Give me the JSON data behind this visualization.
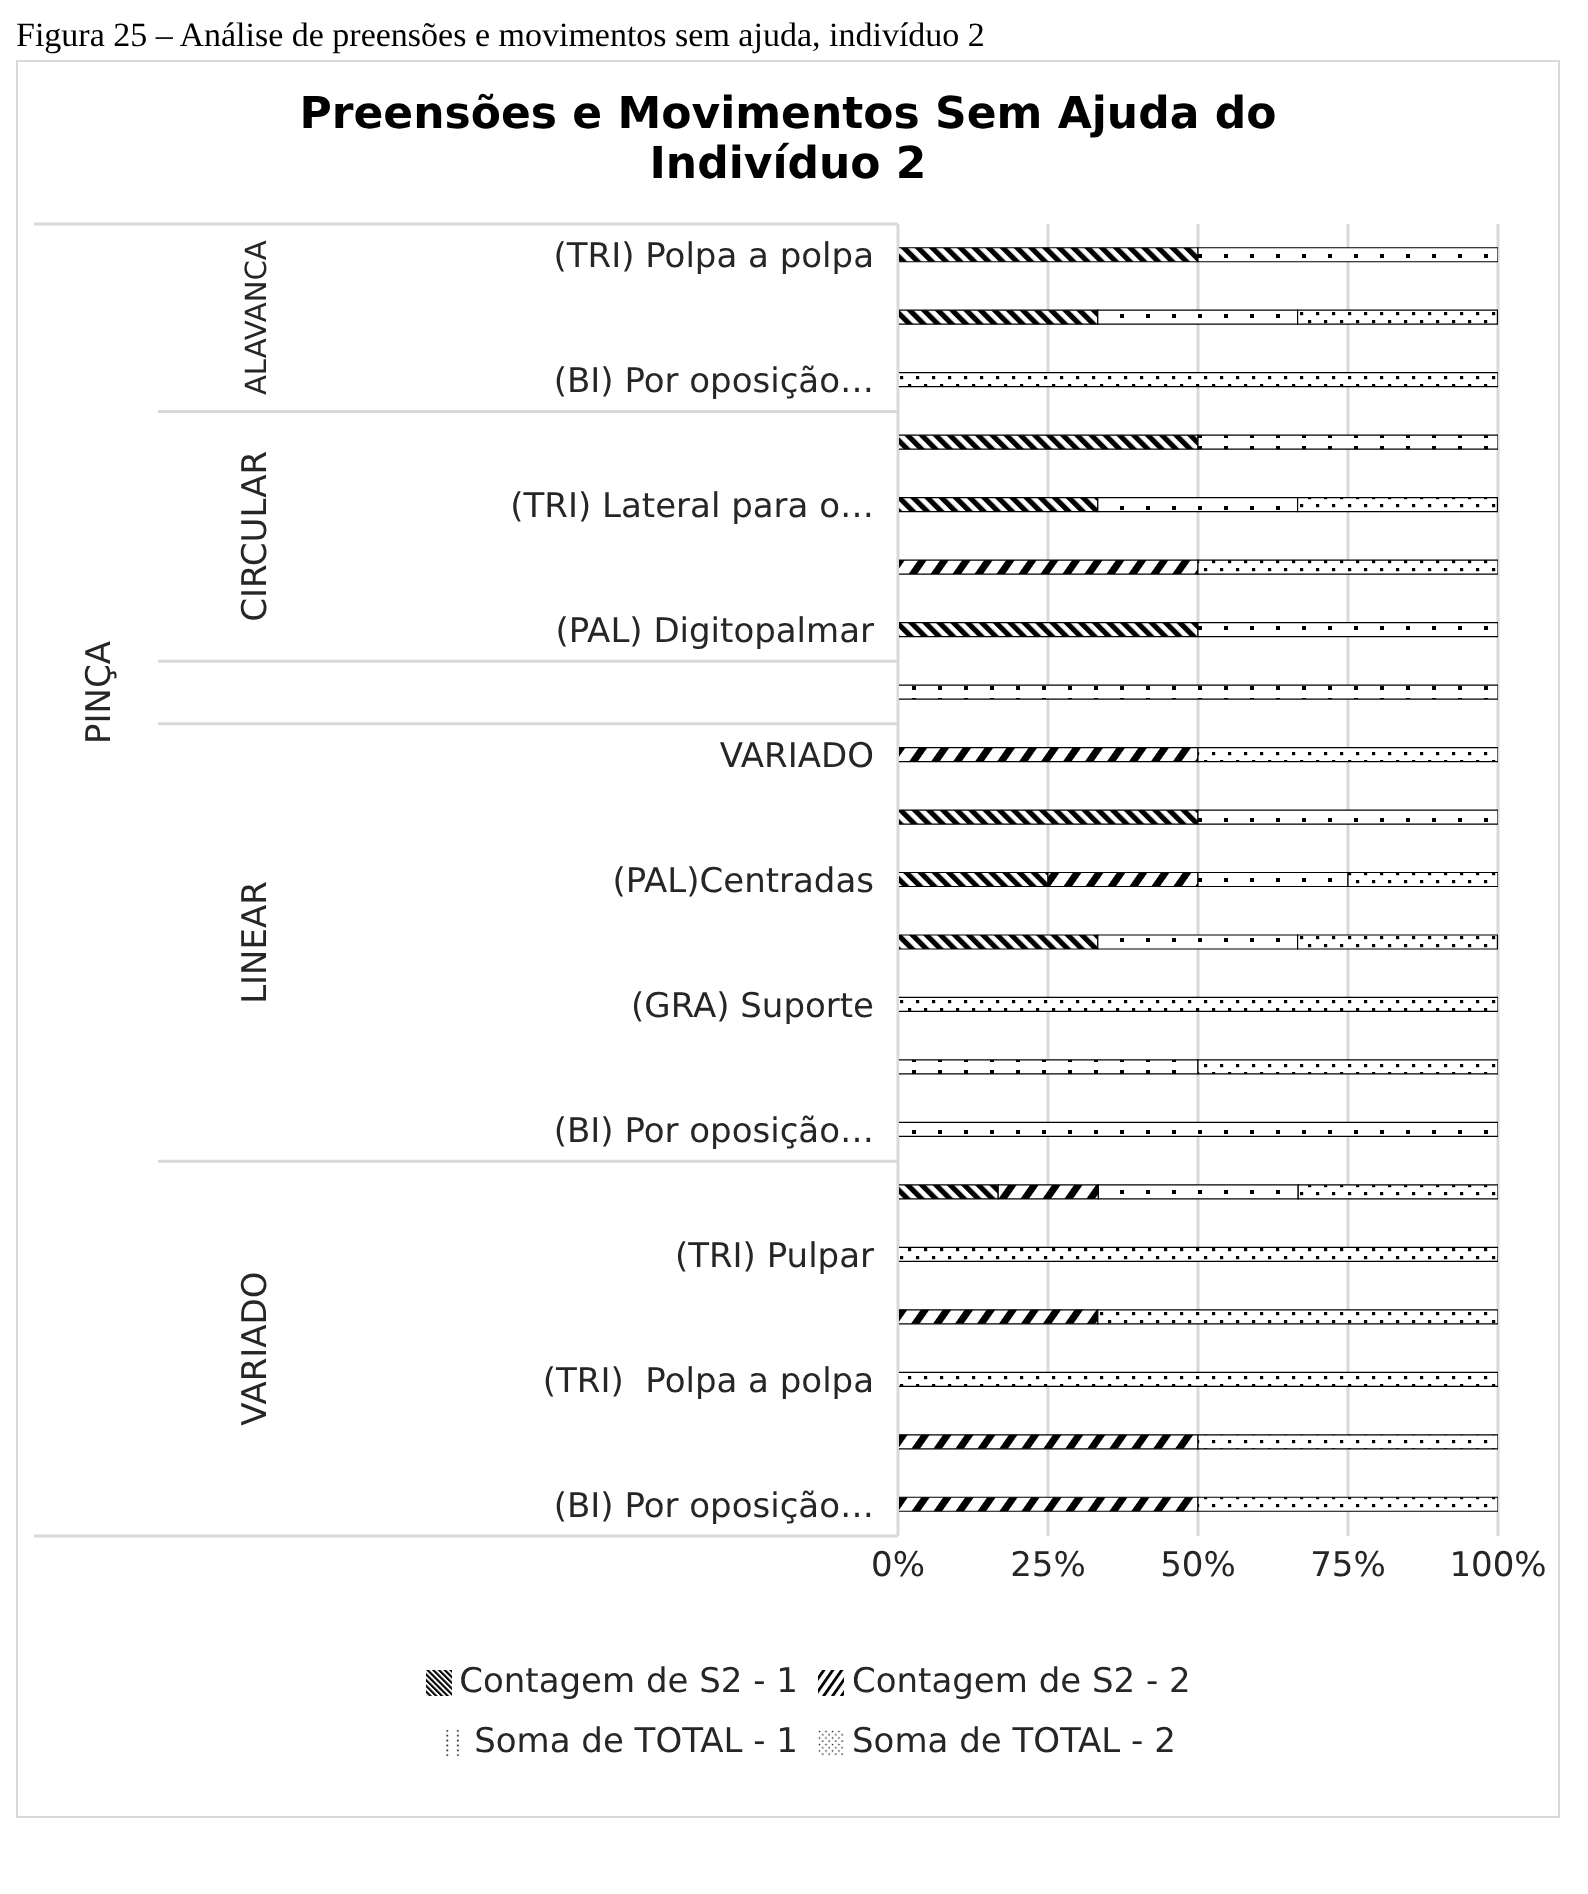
{
  "chart_data": {
    "type": "bar",
    "orientation": "horizontal",
    "stacked": true,
    "title": "Preensões e Movimentos Sem Ajuda do Indivíduo 2",
    "annotations": [
      "Figura 25 – Análise de preensões e movimentos sem ajuda, indivíduo 2",
      "PINÇA",
      "ALAVANCA",
      "CIRCULAR",
      "LINEAR",
      "VARIADO"
    ],
    "categories": [
      "(TRI) Polpa a polpa",
      null,
      "(BI) Por oposição…",
      null,
      "(TRI) Lateral para o…",
      null,
      "(PAL) Digitopalmar",
      null,
      "VARIADO",
      null,
      "(PAL)Centradas",
      null,
      "(GRA) Suporte",
      null,
      "(BI) Por oposição…",
      null,
      "(TRI) Pulpar",
      null,
      "(TRI)  Polpa a polpa",
      null,
      "(BI) Por oposição…"
    ],
    "series": [
      {
        "name": "Contagem de S2 - 1",
        "color": "#000000",
        "values": [
          50,
          33.3,
          null,
          50,
          33.3,
          null,
          50,
          null,
          null,
          50,
          25,
          33.3,
          null,
          null,
          null,
          16.7,
          null,
          null,
          null,
          null,
          null
        ]
      },
      {
        "name": "Contagem de S2 - 2",
        "color": "#000000",
        "values": [
          null,
          null,
          null,
          null,
          null,
          50,
          null,
          null,
          50,
          null,
          25,
          null,
          null,
          null,
          null,
          16.7,
          null,
          33.3,
          null,
          50,
          50
        ]
      },
      {
        "name": "Soma de TOTAL - 1",
        "color": "#000000",
        "values": [
          50,
          33.3,
          null,
          50,
          33.3,
          null,
          50,
          100,
          null,
          50,
          25,
          33.3,
          null,
          50,
          100,
          33.3,
          null,
          null,
          null,
          null,
          null
        ]
      },
      {
        "name": "Soma de TOTAL - 2",
        "color": "#000000",
        "values": [
          null,
          33.3,
          100,
          null,
          33.3,
          50,
          null,
          null,
          50,
          null,
          25,
          33.3,
          100,
          50,
          null,
          33.3,
          100,
          66.7,
          100,
          50,
          50
        ]
      }
    ],
    "xlim": [
      0,
      100
    ],
    "xticks": [
      {
        "value": 0,
        "label": "0%"
      },
      {
        "value": 25,
        "label": "25%"
      },
      {
        "value": 50,
        "label": "50%"
      },
      {
        "value": 75,
        "label": "75%"
      },
      {
        "value": 100,
        "label": "100%"
      }
    ],
    "grid": "x",
    "legend": "bottom"
  }
}
